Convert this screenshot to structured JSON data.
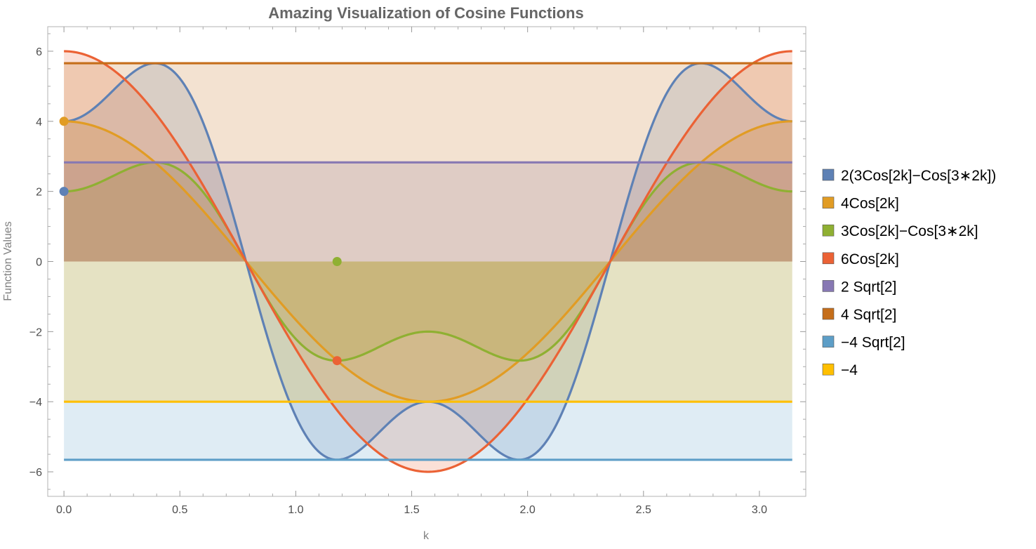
{
  "chart_data": {
    "type": "line",
    "title": "Amazing Visualization of Cosine Functions",
    "xlabel": "k",
    "ylabel": "Function Values",
    "xlim": [
      -0.07,
      3.2
    ],
    "ylim": [
      -6.7,
      6.7
    ],
    "x_ticks": [
      0.0,
      0.5,
      1.0,
      1.5,
      2.0,
      2.5,
      3.0
    ],
    "x_tick_labels": [
      "0.0",
      "0.5",
      "1.0",
      "1.5",
      "2.0",
      "2.5",
      "3.0"
    ],
    "y_ticks": [
      -6,
      -4,
      -2,
      0,
      2,
      4,
      6
    ],
    "y_tick_labels": [
      "−6",
      "−4",
      "−2",
      "0",
      "2",
      "4",
      "6"
    ],
    "x_range": [
      0,
      3.14159
    ],
    "filling": "axis",
    "legend_position": "right",
    "grid": false,
    "series": [
      {
        "name": "2(3Cos[2k]−Cos[3∗2k])",
        "expression": "2*(3*cos(2*k)-cos(6*k))",
        "color": "#5e81b5"
      },
      {
        "name": "4Cos[2k]",
        "expression": "4*cos(2*k)",
        "color": "#e19c24"
      },
      {
        "name": "3Cos[2k]−Cos[3∗2k]",
        "expression": "3*cos(2*k)-cos(6*k)",
        "color": "#8fb032"
      },
      {
        "name": "6Cos[2k]",
        "expression": "6*cos(2*k)",
        "color": "#eb6235"
      },
      {
        "name": "2 Sqrt[2]",
        "expression": "2.8284",
        "color": "#8778b3"
      },
      {
        "name": "4 Sqrt[2]",
        "expression": "5.6569",
        "color": "#c56e1a"
      },
      {
        "name": "−4 Sqrt[2]",
        "expression": "-5.6569",
        "color": "#5d9ec7"
      },
      {
        "name": "−4",
        "expression": "-4",
        "color": "#ffbf00"
      }
    ],
    "points": [
      {
        "x": 0,
        "y": 2,
        "color": "#5e81b5"
      },
      {
        "x": 0,
        "y": 4,
        "color": "#e19c24"
      },
      {
        "x": 1.1781,
        "y": 0,
        "color": "#8fb032"
      },
      {
        "x": 1.1781,
        "y": -2.8284,
        "color": "#eb6235"
      }
    ]
  }
}
